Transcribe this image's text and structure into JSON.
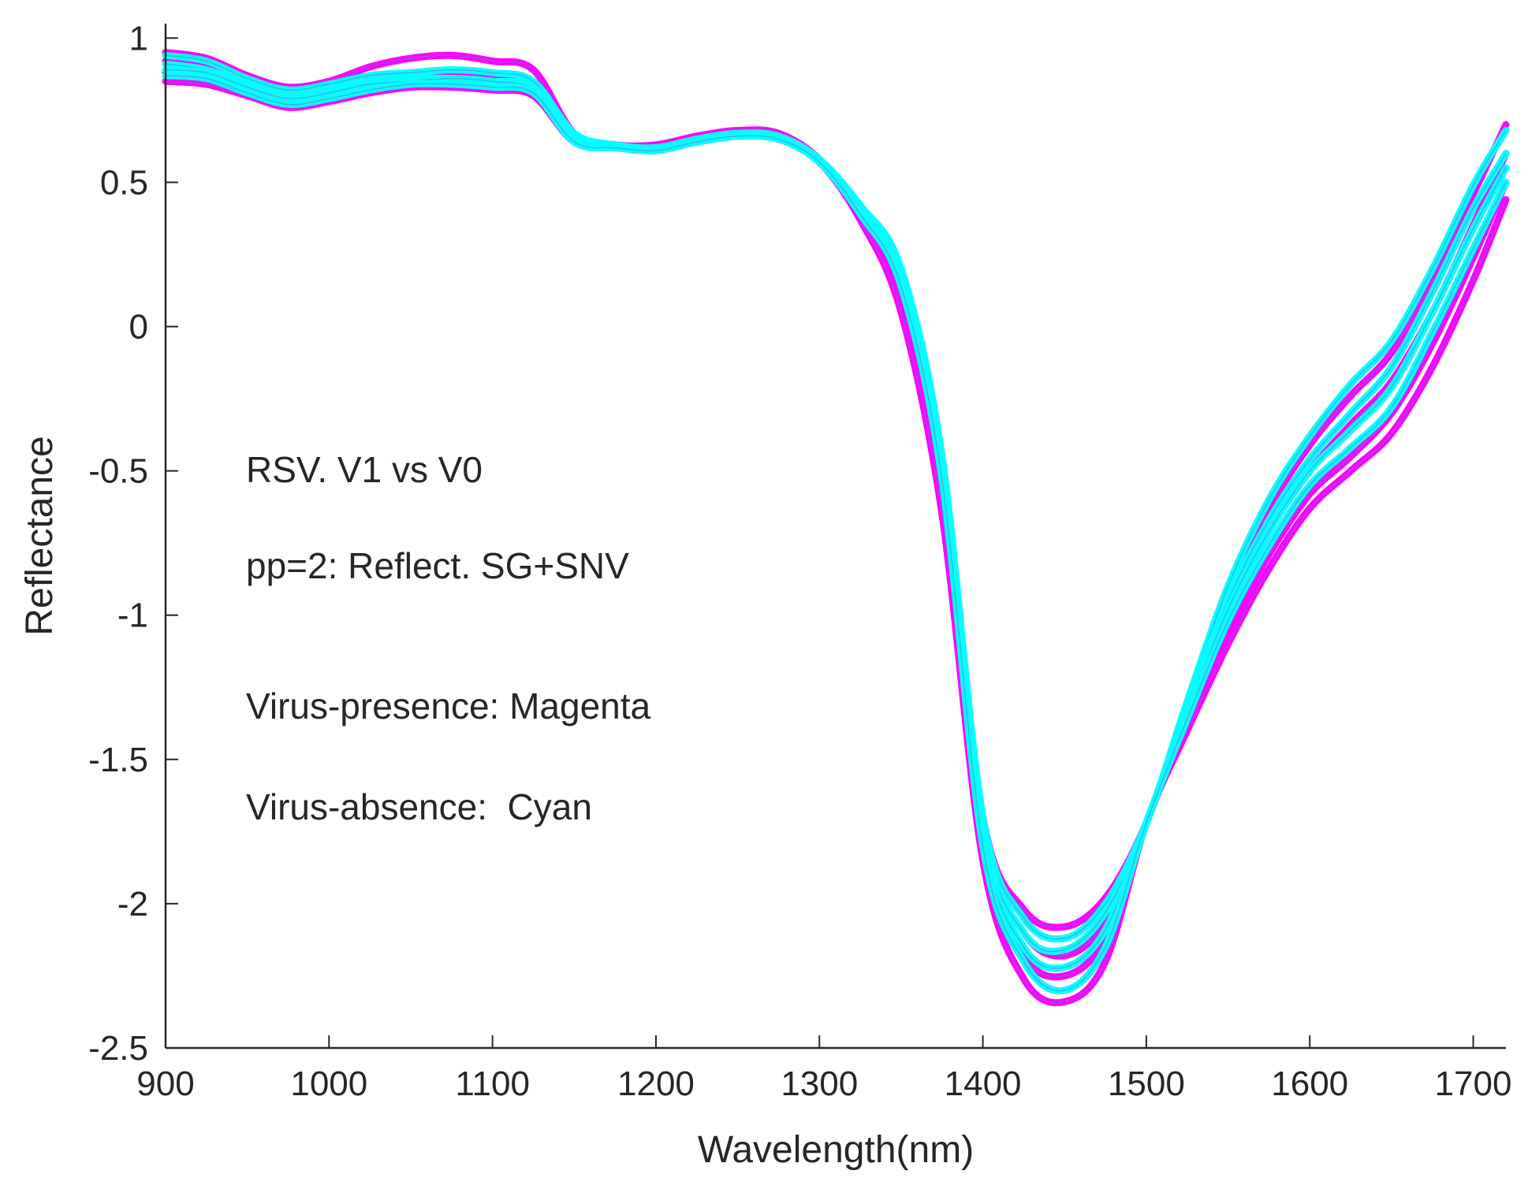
{
  "chart_data": {
    "type": "line",
    "title": "",
    "xlabel": "Wavelength(nm)",
    "ylabel": "Reflectance",
    "xlim": [
      900,
      1720
    ],
    "ylim": [
      -2.5,
      1.05
    ],
    "xticks": [
      900,
      1000,
      1100,
      1200,
      1300,
      1400,
      1500,
      1600,
      1700
    ],
    "yticks": [
      1,
      0.5,
      0,
      -0.5,
      -1,
      -1.5,
      -2,
      -2.5
    ],
    "xtick_labels": [
      "900",
      "1000",
      "1100",
      "1200",
      "1300",
      "1400",
      "1500",
      "1600",
      "1700"
    ],
    "ytick_labels": [
      "1",
      "0.5",
      "0",
      "-0.5",
      "-1",
      "-1.5",
      "-2",
      "-2.5"
    ],
    "grid": false,
    "legend": "none",
    "annotations": [
      "RSV. V1 vs V0",
      "pp=2: Reflect. SG+SNV",
      "Virus-presence: Magenta",
      "Virus-absence:  Cyan"
    ],
    "x": [
      900,
      925,
      950,
      975,
      1000,
      1025,
      1050,
      1075,
      1100,
      1125,
      1150,
      1175,
      1200,
      1225,
      1250,
      1275,
      1300,
      1325,
      1350,
      1375,
      1400,
      1425,
      1450,
      1475,
      1500,
      1525,
      1550,
      1575,
      1600,
      1625,
      1650,
      1675,
      1700,
      1720
    ],
    "series": [
      {
        "name": "Virus-presence 1",
        "group": "magenta",
        "color": "#ff00ff",
        "values": [
          0.95,
          0.93,
          0.87,
          0.83,
          0.85,
          0.9,
          0.93,
          0.94,
          0.92,
          0.89,
          0.67,
          0.63,
          0.63,
          0.66,
          0.68,
          0.67,
          0.58,
          0.4,
          0.15,
          -0.5,
          -1.7,
          -2.02,
          -2.08,
          -1.98,
          -1.72,
          -1.31,
          -0.92,
          -0.63,
          -0.41,
          -0.24,
          -0.09,
          0.16,
          0.46,
          0.7
        ]
      },
      {
        "name": "Virus-presence 2",
        "group": "magenta",
        "color": "#ff00ff",
        "values": [
          0.92,
          0.9,
          0.85,
          0.81,
          0.83,
          0.86,
          0.88,
          0.88,
          0.87,
          0.84,
          0.66,
          0.63,
          0.62,
          0.65,
          0.67,
          0.66,
          0.58,
          0.39,
          0.12,
          -0.55,
          -1.75,
          -2.1,
          -2.18,
          -2.06,
          -1.72,
          -1.34,
          -0.99,
          -0.71,
          -0.5,
          -0.34,
          -0.19,
          0.05,
          0.35,
          0.6
        ]
      },
      {
        "name": "Virus-presence 3",
        "group": "magenta",
        "color": "#ff00ff",
        "values": [
          0.88,
          0.87,
          0.82,
          0.78,
          0.8,
          0.83,
          0.85,
          0.85,
          0.84,
          0.82,
          0.65,
          0.62,
          0.62,
          0.64,
          0.66,
          0.65,
          0.57,
          0.38,
          0.1,
          -0.6,
          -1.8,
          -2.18,
          -2.25,
          -2.12,
          -1.72,
          -1.37,
          -1.05,
          -0.79,
          -0.58,
          -0.45,
          -0.3,
          -0.06,
          0.24,
          0.5
        ]
      },
      {
        "name": "Virus-presence 4",
        "group": "magenta",
        "color": "#ff00ff",
        "values": [
          0.85,
          0.84,
          0.8,
          0.76,
          0.78,
          0.81,
          0.83,
          0.83,
          0.82,
          0.8,
          0.64,
          0.62,
          0.61,
          0.64,
          0.66,
          0.65,
          0.57,
          0.37,
          0.05,
          -0.65,
          -1.85,
          -2.26,
          -2.34,
          -2.2,
          -1.72,
          -1.4,
          -1.1,
          -0.84,
          -0.63,
          -0.5,
          -0.37,
          -0.14,
          0.16,
          0.44
        ]
      },
      {
        "name": "Virus-absence 1",
        "group": "cyan",
        "color": "#00ffff",
        "values": [
          0.94,
          0.92,
          0.86,
          0.82,
          0.84,
          0.87,
          0.88,
          0.89,
          0.88,
          0.85,
          0.67,
          0.63,
          0.62,
          0.65,
          0.67,
          0.66,
          0.58,
          0.42,
          0.2,
          -0.45,
          -1.7,
          -2.05,
          -2.12,
          -2.0,
          -1.72,
          -1.3,
          -0.9,
          -0.6,
          -0.38,
          -0.2,
          -0.05,
          0.2,
          0.49,
          0.68
        ]
      },
      {
        "name": "Virus-absence 2",
        "group": "cyan",
        "color": "#00ffff",
        "values": [
          0.91,
          0.89,
          0.84,
          0.8,
          0.82,
          0.85,
          0.86,
          0.86,
          0.85,
          0.83,
          0.66,
          0.62,
          0.62,
          0.64,
          0.66,
          0.65,
          0.58,
          0.41,
          0.18,
          -0.48,
          -1.73,
          -2.1,
          -2.16,
          -2.03,
          -1.72,
          -1.32,
          -0.95,
          -0.67,
          -0.46,
          -0.3,
          -0.14,
          0.12,
          0.41,
          0.6
        ]
      },
      {
        "name": "Virus-absence 3",
        "group": "cyan",
        "color": "#00ffff",
        "values": [
          0.89,
          0.88,
          0.83,
          0.79,
          0.81,
          0.84,
          0.85,
          0.86,
          0.85,
          0.82,
          0.65,
          0.62,
          0.62,
          0.64,
          0.66,
          0.65,
          0.57,
          0.4,
          0.16,
          -0.5,
          -1.76,
          -2.15,
          -2.22,
          -2.09,
          -1.72,
          -1.34,
          -0.98,
          -0.71,
          -0.5,
          -0.36,
          -0.21,
          0.05,
          0.34,
          0.55
        ]
      },
      {
        "name": "Virus-absence 4",
        "group": "cyan",
        "color": "#00ffff",
        "values": [
          0.87,
          0.86,
          0.81,
          0.77,
          0.79,
          0.82,
          0.84,
          0.84,
          0.83,
          0.81,
          0.64,
          0.62,
          0.61,
          0.64,
          0.66,
          0.65,
          0.57,
          0.39,
          0.14,
          -0.53,
          -1.8,
          -2.2,
          -2.3,
          -2.15,
          -1.72,
          -1.36,
          -1.02,
          -0.76,
          -0.55,
          -0.42,
          -0.28,
          -0.02,
          0.27,
          0.5
        ]
      }
    ]
  }
}
